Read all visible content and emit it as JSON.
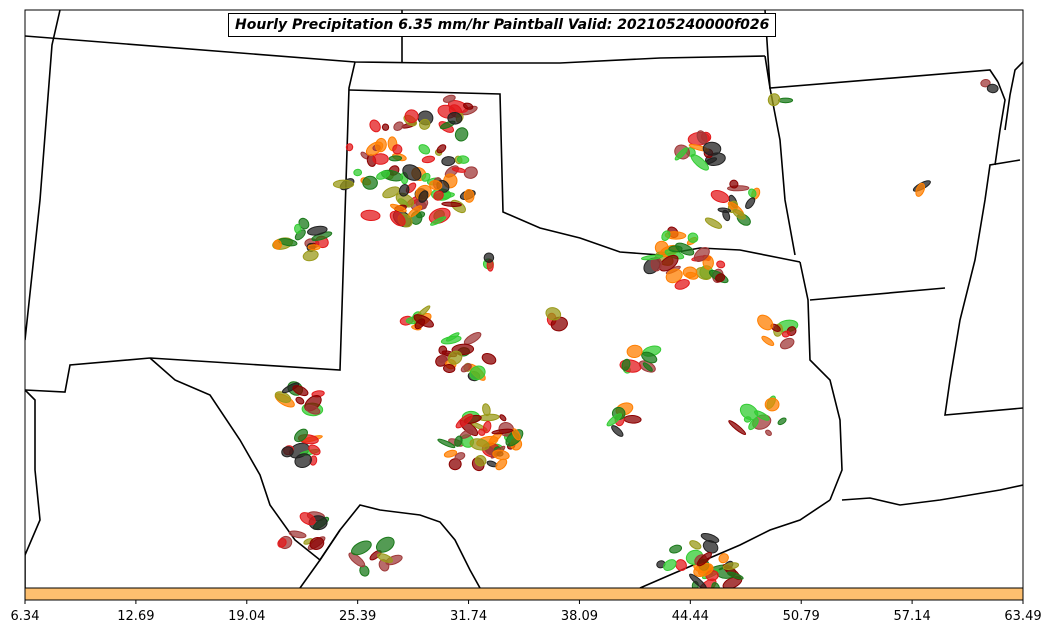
{
  "chart_data": {
    "type": "map",
    "title": "Hourly Precipitation 6.35 mm/hr Paintball Valid: 202105240000f026",
    "colorbar": {
      "ticks": [
        "6.34",
        "12.69",
        "19.04",
        "25.39",
        "31.74",
        "38.09",
        "44.44",
        "50.79",
        "57.14",
        "63.49"
      ],
      "color": "#fdbf6f"
    },
    "member_colors": [
      "#e31a1c",
      "#ff7f00",
      "#8b0000",
      "#1b7a1b",
      "#33cc33",
      "#9a9a1a",
      "#222222",
      "#a03a3a"
    ]
  }
}
